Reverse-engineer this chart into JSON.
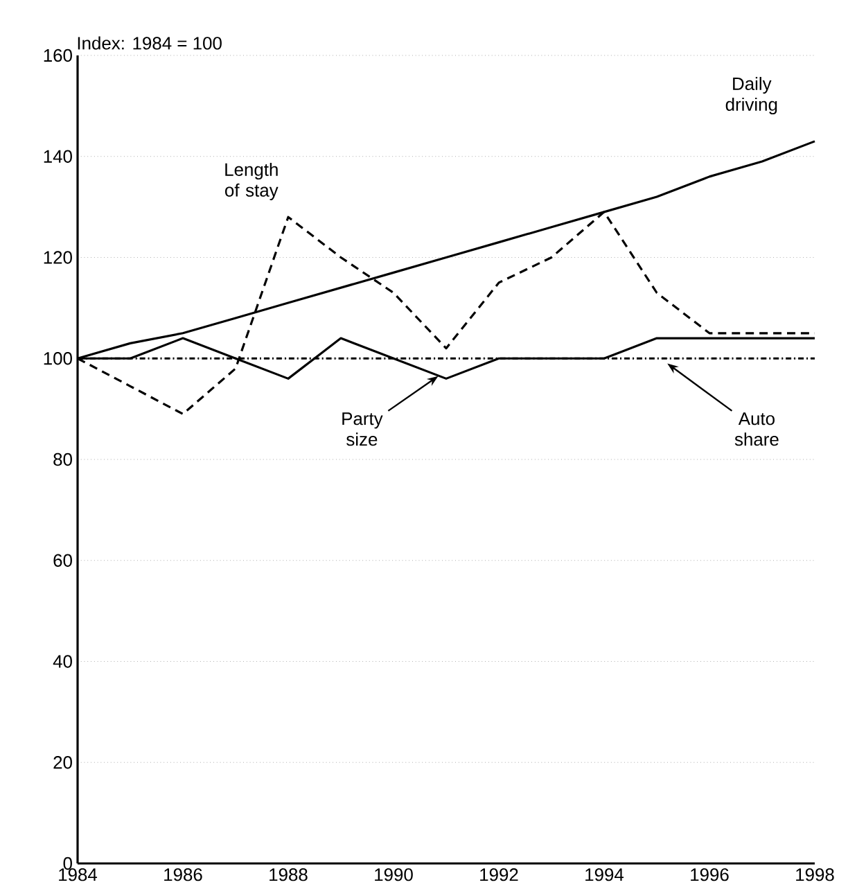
{
  "chart_data": {
    "type": "line",
    "ylabel": "Index: 1984 = 100",
    "x": [
      1984,
      1985,
      1986,
      1987,
      1988,
      1989,
      1990,
      1991,
      1992,
      1993,
      1994,
      1995,
      1996,
      1997,
      1998
    ],
    "series": [
      {
        "name": "Daily driving",
        "color": "#000000",
        "line_style": "solid",
        "values": [
          100,
          103,
          105,
          108,
          111,
          114,
          117,
          120,
          123,
          126,
          129,
          132,
          136,
          139,
          143
        ]
      },
      {
        "name": "Length of stay",
        "color": "#000000",
        "line_style": "dashed",
        "values": [
          100,
          94.5,
          89,
          98,
          128,
          120,
          113,
          102,
          115,
          120,
          129,
          113,
          105,
          105,
          105
        ]
      },
      {
        "name": "Party size",
        "color": "#000000",
        "line_style": "solid",
        "values": [
          100,
          100,
          104,
          100,
          96,
          104,
          100,
          96,
          100,
          100,
          100,
          104,
          104,
          104,
          104
        ]
      },
      {
        "name": "Auto share",
        "color": "#000000",
        "line_style": "dotted",
        "values": [
          100,
          100,
          100,
          100,
          100,
          100,
          100,
          100,
          100,
          100,
          100,
          100,
          100,
          100,
          100
        ]
      }
    ],
    "xlim": [
      1984,
      1998
    ],
    "xticks": [
      1984,
      1986,
      1988,
      1990,
      1992,
      1994,
      1996,
      1998
    ],
    "ylim": [
      0,
      160
    ],
    "yticks": [
      0,
      20,
      40,
      60,
      80,
      100,
      120,
      140,
      160
    ],
    "grid": "y",
    "legend": false,
    "marker": "none"
  }
}
